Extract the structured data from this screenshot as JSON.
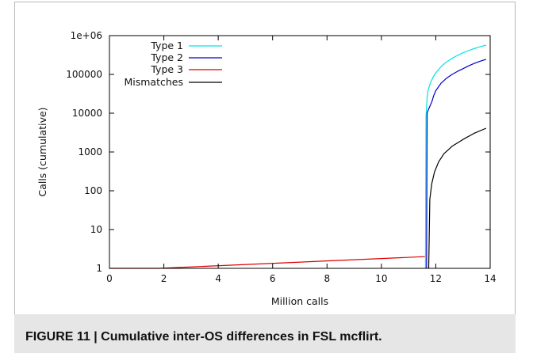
{
  "caption": "FIGURE 11 | Cumulative inter-OS differences in FSL mcflirt.",
  "chart_data": {
    "type": "line",
    "xlabel": "Million calls",
    "ylabel": "Calls (cumulative)",
    "xlim": [
      0,
      14
    ],
    "ylim": [
      1,
      1000000
    ],
    "y_scale": "log",
    "grid": false,
    "legend_position": "top-left",
    "x_ticks": [
      0,
      2,
      4,
      6,
      8,
      10,
      12,
      14
    ],
    "y_ticks": [
      {
        "value": 1,
        "label": "1"
      },
      {
        "value": 10,
        "label": "10"
      },
      {
        "value": 100,
        "label": "100"
      },
      {
        "value": 1000,
        "label": "1000"
      },
      {
        "value": 10000,
        "label": "10000"
      },
      {
        "value": 100000,
        "label": "100000"
      },
      {
        "value": 1000000,
        "label": "1e+06"
      }
    ],
    "series": [
      {
        "name": "Type 1",
        "color": "#00e5e5",
        "x": [
          11.62,
          11.64,
          11.68,
          11.72,
          11.8,
          11.9,
          12.0,
          12.2,
          12.4,
          12.6,
          12.8,
          13.0,
          13.2,
          13.4,
          13.6,
          13.85
        ],
        "y": [
          1,
          8000,
          25000,
          40000,
          60000,
          85000,
          110000,
          160000,
          210000,
          260000,
          310000,
          360000,
          410000,
          460000,
          510000,
          570000
        ]
      },
      {
        "name": "Type 2",
        "color": "#0000cc",
        "x": [
          11.66,
          11.68,
          11.7,
          11.78,
          11.86,
          11.92,
          12.0,
          12.1,
          12.2,
          12.4,
          12.6,
          12.8,
          13.0,
          13.2,
          13.4,
          13.6,
          13.85
        ],
        "y": [
          1,
          10000,
          11000,
          15000,
          20000,
          28000,
          38000,
          48000,
          60000,
          80000,
          100000,
          120000,
          140000,
          165000,
          190000,
          215000,
          245000
        ]
      },
      {
        "name": "Type 3",
        "color": "#dd0000",
        "x": [
          0,
          1.8,
          11.6
        ],
        "y": [
          1,
          1,
          2
        ]
      },
      {
        "name": "Mismatches",
        "color": "#000000",
        "x": [
          11.74,
          11.78,
          11.85,
          11.95,
          12.1,
          12.3,
          12.6,
          13.0,
          13.4,
          13.85
        ],
        "y": [
          1,
          60,
          150,
          300,
          550,
          900,
          1400,
          2100,
          3000,
          4100
        ]
      }
    ]
  }
}
